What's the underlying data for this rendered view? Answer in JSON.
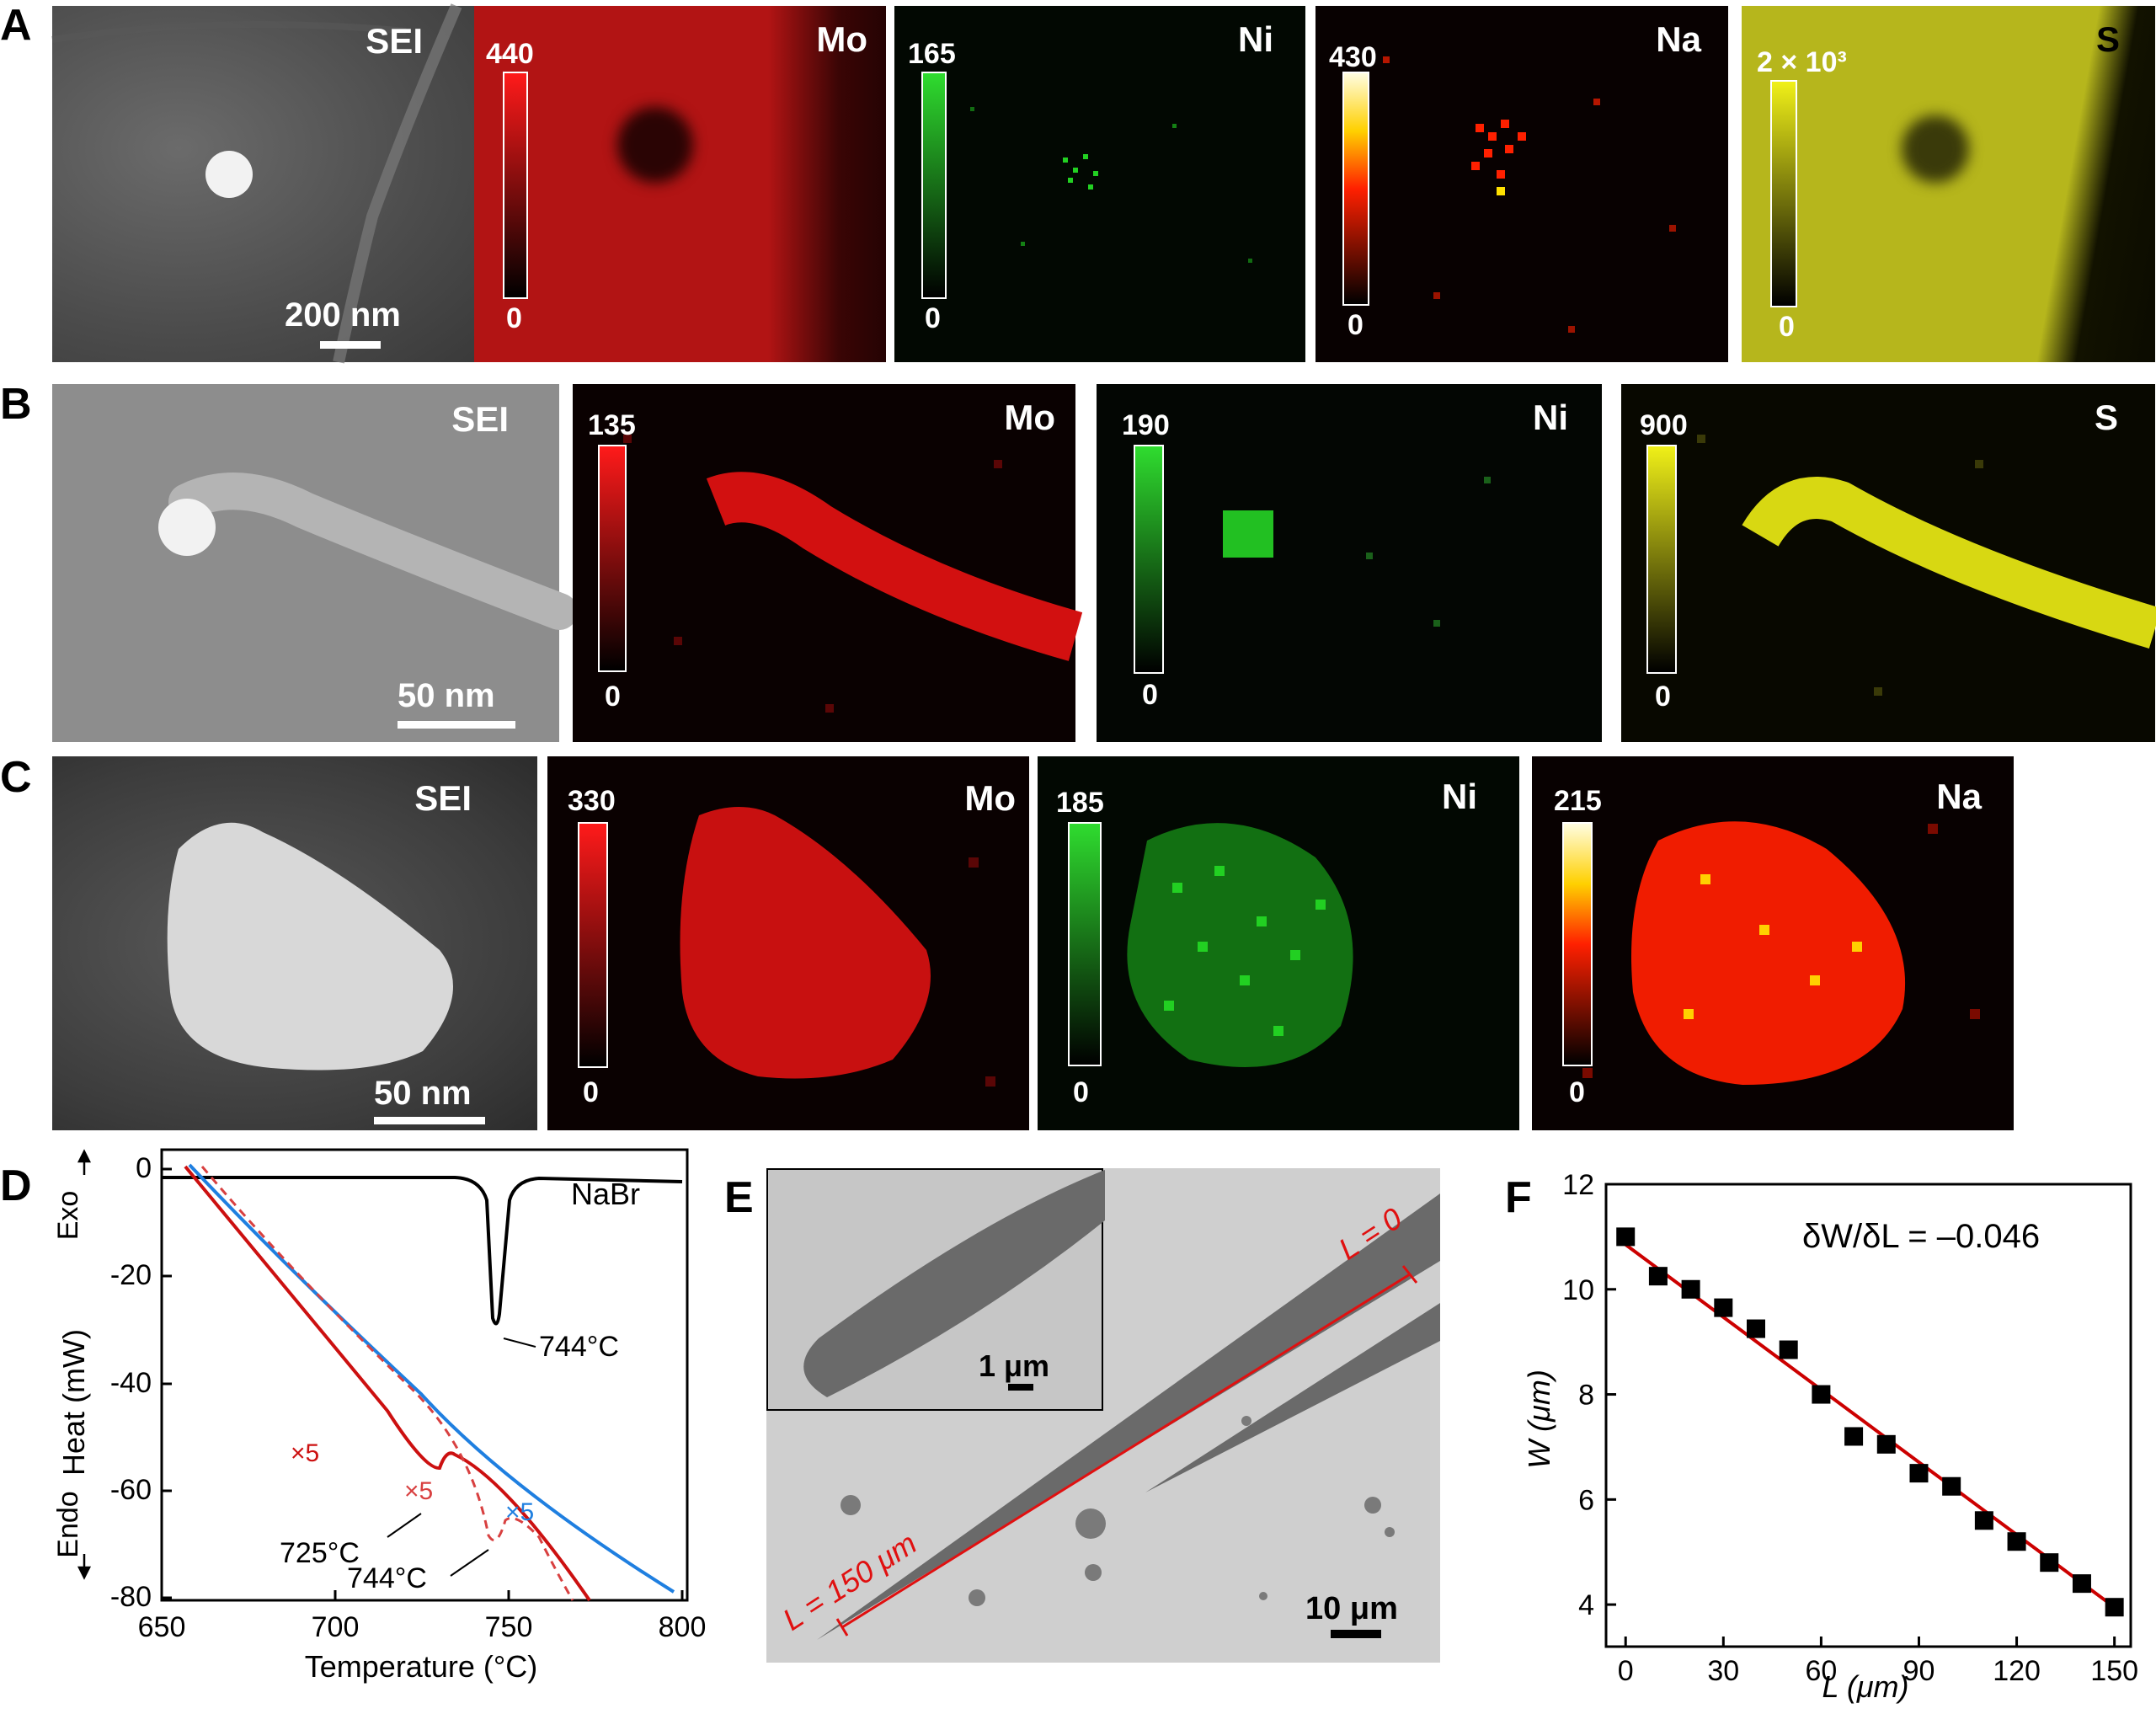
{
  "panel_letters": {
    "a": "A",
    "b": "B",
    "c": "C",
    "d": "D",
    "e": "E",
    "f": "F"
  },
  "rowA": {
    "sei": {
      "label": "SEI",
      "scale": "200 nm"
    },
    "mo": {
      "label": "Mo",
      "max": "440",
      "min": "0"
    },
    "ni": {
      "label": "Ni",
      "max": "165",
      "min": "0"
    },
    "na": {
      "label": "Na",
      "max": "430",
      "min": "0"
    },
    "s": {
      "label": "S",
      "max": "2 × 10³",
      "min": "0"
    }
  },
  "rowB": {
    "sei": {
      "label": "SEI",
      "scale": "50 nm"
    },
    "mo": {
      "label": "Mo",
      "max": "135",
      "min": "0"
    },
    "ni": {
      "label": "Ni",
      "max": "190",
      "min": "0"
    },
    "s": {
      "label": "S",
      "max": "900",
      "min": "0"
    }
  },
  "rowC": {
    "sei": {
      "label": "SEI",
      "scale": "50 nm"
    },
    "mo": {
      "label": "Mo",
      "max": "330",
      "min": "0"
    },
    "ni": {
      "label": "Ni",
      "max": "185",
      "min": "0"
    },
    "na": {
      "label": "Na",
      "max": "215",
      "min": "0"
    }
  },
  "colors": {
    "mo": "#e01010",
    "ni": "#22d022",
    "na_hot": "#ff2000",
    "s": "#e6e60a",
    "fit": "#cc0000",
    "blue": "#1f7fe0"
  },
  "panelD": {
    "xlabel": "Temperature (°C)",
    "ylabel": "Heat (mW)",
    "exo": "Exo",
    "endo": "Endo",
    "nabr": "NaBr",
    "ann_744_top": "744°C",
    "ann_725": "725°C",
    "ann_744_bottom": "744°C",
    "x5_red": "×5",
    "x5_dash": "×5",
    "x5_blue": "×5",
    "xticks": [
      "650",
      "700",
      "750",
      "800"
    ],
    "yticks": [
      "0",
      "-20",
      "-40",
      "-60",
      "-80"
    ]
  },
  "panelE": {
    "L0": "L = 0",
    "L150": "L = 150 μm",
    "inset_scale": "1 μm",
    "main_scale": "10 μm"
  },
  "panelF": {
    "xlabel": "L (μm)",
    "ylabel": "W (μm)",
    "slope": "δW/δL = –0.046",
    "xticks": [
      "0",
      "30",
      "60",
      "90",
      "120",
      "150"
    ],
    "yticks": [
      "4",
      "6",
      "8",
      "10",
      "12"
    ]
  },
  "chart_data": {
    "type": "scatter",
    "x": [
      0,
      10,
      20,
      30,
      40,
      50,
      60,
      70,
      80,
      90,
      100,
      110,
      120,
      130,
      140,
      150
    ],
    "series": [
      {
        "values": [
          11.0,
          10.25,
          10.0,
          9.65,
          9.25,
          8.85,
          8.0,
          7.2,
          7.05,
          6.5,
          6.25,
          5.6,
          5.2,
          4.8,
          4.4,
          3.95
        ]
      }
    ],
    "fit": {
      "slope": -0.046,
      "intercept": 10.85
    },
    "xlabel": "L (μm)",
    "ylabel": "W (μm)",
    "xlim": [
      -6,
      155
    ],
    "ylim": [
      3.2,
      12
    ]
  }
}
